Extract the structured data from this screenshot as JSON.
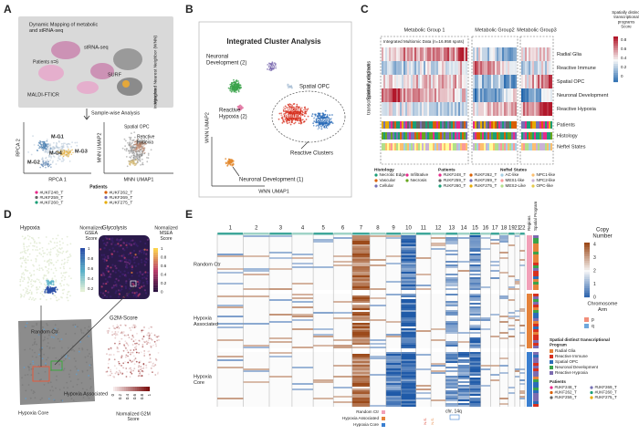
{
  "panel_a": {
    "label": "A",
    "title": [
      "Dynamic Mapping of metabolic",
      "and stRNA-seq"
    ],
    "strnaseq": "stRNA-seq",
    "patients_n": "Patients n=6",
    "surf": "SURF",
    "maldi": "MALDI-FTICR",
    "integration": [
      "Weighted Nearest Neighbor (WNN)",
      "Integration"
    ],
    "sample_wise": "Sample-wise Analysis",
    "rpca_x": "RPCA 1",
    "rpca_y": "RPCA 2",
    "groups": [
      "M-G1",
      "M-G2",
      "M-G3",
      "M-G4"
    ],
    "umap_labels": [
      "Spatial OPC",
      "Reactive",
      "Hypoxia"
    ],
    "mnn_x": "MNN UMAP1",
    "mnn_y": "MNN UMAP2",
    "legend_title": "Patients",
    "patients": [
      "#UKF248_T",
      "#UKF259_T",
      "#UKF260_T",
      "#UKF262_T",
      "#UKF269_T",
      "#UKF275_T"
    ]
  },
  "panel_b": {
    "label": "B",
    "title": "Integrated Cluster Analysis",
    "clusters": {
      "neuro2": [
        "Neuronal",
        "Development (2)"
      ],
      "na": "(NA)",
      "opc": "Spatial OPC",
      "hyp2": [
        "Reactive",
        "Hypoxia (2)"
      ],
      "immune": [
        "Reactive",
        "Immune"
      ],
      "hyp1": [
        "Reactive",
        "Hypoxia (1)"
      ],
      "reactive": "Reactive Clusters",
      "neuro1": "Neuronal Development (1)"
    },
    "x_label": "WNN UMAP1",
    "y_label": "WNN UMAP2"
  },
  "panel_c": {
    "label": "C",
    "groups": [
      "Metabolic Group 1",
      "Metabolic Group2",
      "Metabolic Group3"
    ],
    "subtitle": "Integrated Multiomic Data (n=16.958 spots)",
    "y_label": [
      "Spatially distinct",
      "transcriptional programs"
    ],
    "rows": [
      "Radial Glia",
      "Reactive Immune",
      "Spatial OPC",
      "Neuronal Development",
      "Reactive Hypoxia"
    ],
    "annotations": [
      "Patients",
      "Histology",
      "Neftel States"
    ],
    "colorbar_title": [
      "Spatially distinct",
      "transcriptional",
      "programs",
      "Score"
    ],
    "colorbar_ticks": [
      "0.8",
      "0.6",
      "0.4",
      "0.2",
      "0"
    ],
    "histology": {
      "title": "Histology",
      "items": [
        "Necrotic Edge",
        "Vascular",
        "Cellular",
        "Infiltrative",
        "Necrosis"
      ]
    },
    "patients": {
      "title": "Patients",
      "items": [
        "#UKF248_T",
        "#UKF259_T",
        "#UKF260_T",
        "#UKF262_T",
        "#UKF269_T",
        "#UKF275_T"
      ]
    },
    "neftel": {
      "title": "Neftel States",
      "items": [
        "AC-like",
        "MES1-like",
        "MES2-Like",
        "NPC1-like",
        "NPC2-like",
        "OPC-like"
      ]
    }
  },
  "panel_d": {
    "label": "D",
    "hypoxia": "Hypoxia",
    "gsea_title": [
      "Normalized",
      "GSEA",
      "Score"
    ],
    "gsea_ticks": [
      "1",
      "0.8",
      "0.6",
      "0.4",
      "0.2"
    ],
    "glycolysis": "Glycolysis",
    "msea_title": [
      "Normalized",
      "MSEA",
      "Score"
    ],
    "msea_ticks": [
      "1",
      "0.8",
      "0.6",
      "0.4",
      "0.2",
      "0"
    ],
    "random_ctr": "Random Ctr",
    "hypoxia_core": "Hypoxia Core",
    "hypoxia_associated": "Hypoxia Associated",
    "g2m": "G2M-Score",
    "g2m_ticks": [
      "1",
      "0.8",
      "0.6",
      "0.4",
      "0.2",
      "0"
    ],
    "g2m_title": [
      "Normalized G2M",
      "Score"
    ]
  },
  "panel_e": {
    "label": "E",
    "chromosomes": [
      "1",
      "2",
      "3",
      "4",
      "5",
      "6",
      "7",
      "8",
      "9",
      "10",
      "11",
      "12",
      "13",
      "14",
      "15",
      "16",
      "17",
      "18",
      "19",
      "21",
      "22"
    ],
    "rows": {
      "random": [
        "Random Ctr"
      ],
      "associated": [
        "Hypoxia",
        "Associated"
      ],
      "core": [
        "Hypoxia",
        "Core"
      ]
    },
    "side_headers": [
      "Regions",
      "Spatial Program"
    ],
    "copy_title": [
      "Copy",
      "Number"
    ],
    "copy_ticks": [
      "4",
      "3",
      "2",
      "1",
      "0"
    ],
    "arm_title": [
      "Chromosome",
      "Arm"
    ],
    "arms": [
      "p",
      "q"
    ],
    "program_title": [
      "Spatial distinct transcriptional",
      "Program"
    ],
    "programs": [
      "Radial Glia",
      "Reactive Immune",
      "Spatial OPC",
      "Neuronal Development",
      "Reactive Hypoxia"
    ],
    "patients_title": "Patients",
    "patients": [
      "#UKF248_T",
      "#UKF262_T",
      "#UKF259_T",
      "#UKF269_T",
      "#UKF260_T",
      "#UKF275_T"
    ],
    "chr_label": "chr. 14q",
    "ns": [
      "N.S.",
      "N.S."
    ],
    "regions": [
      "Random Ctr",
      "Hypoxia Associated",
      "Hypoxia Core"
    ]
  }
}
